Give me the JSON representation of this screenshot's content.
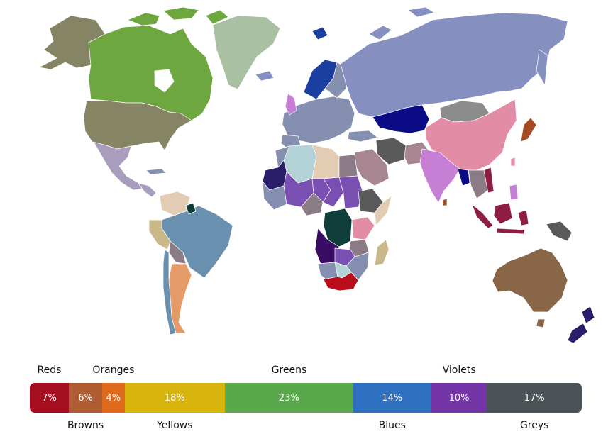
{
  "legend": {
    "segments": [
      {
        "name": "Reds",
        "percent": 7,
        "label": "7%",
        "color": "#a40e1e",
        "name_position": "top"
      },
      {
        "name": "Browns",
        "percent": 6,
        "label": "6%",
        "color": "#b05d33",
        "name_position": "bottom"
      },
      {
        "name": "Oranges",
        "percent": 4,
        "label": "4%",
        "color": "#e06a1c",
        "name_position": "top"
      },
      {
        "name": "Yellows",
        "percent": 18,
        "label": "18%",
        "color": "#d6b40c",
        "name_position": "bottom"
      },
      {
        "name": "Greens",
        "percent": 23,
        "label": "23%",
        "color": "#59a84b",
        "name_position": "top"
      },
      {
        "name": "Blues",
        "percent": 14,
        "label": "14%",
        "color": "#2f70c1",
        "name_position": "bottom"
      },
      {
        "name": "Violets",
        "percent": 10,
        "label": "10%",
        "color": "#7435a6",
        "name_position": "top"
      },
      {
        "name": "Greys",
        "percent": 17,
        "label": "17%",
        "color": "#4b5356",
        "name_position": "bottom"
      }
    ]
  },
  "map_colors": {
    "russia": "#8690c0",
    "canada": "#6ea640",
    "alaska": "#858465",
    "usa": "#858465",
    "greenland": "#a9c1a2",
    "mexico": "#a99dbd",
    "brazil": "#6a90b0",
    "argentina": "#e49b68",
    "china": "#e28ca6",
    "india": "#c77fd6",
    "kazakhstan": "#0b0b85",
    "mongolia": "#8c8c8c",
    "australia": "#8a6648",
    "algeria": "#b3d3d8",
    "libya": "#e2cdb4",
    "egypt": "#8b7b86",
    "drc": "#0f3d3a",
    "sudan": "#7a4fb2",
    "south_africa": "#b80d1a",
    "saudi": "#a78591",
    "indonesia": "#8e1d43",
    "scandinavia": "#1a3fa1",
    "europe": "#8590b0",
    "iran": "#5a5a5a",
    "new_zealand": "#2a1d6a",
    "madagascar": "#c9b88a",
    "japan": "#a34b25",
    "angola": "#3a0b63"
  }
}
